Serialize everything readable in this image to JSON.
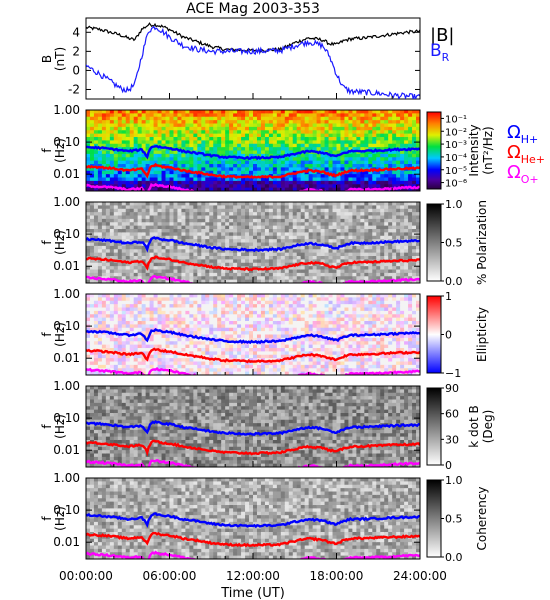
{
  "title": "ACE Mag 2003-353",
  "xlabel": "Time (UT)",
  "xticks": [
    "00:00:00",
    "06:00:00",
    "12:00:00",
    "18:00:00",
    "24:00:00"
  ],
  "colors": {
    "background": "#ffffff",
    "bmag": "#000000",
    "br": "#1a1aff",
    "h_gyro": "#0000ff",
    "he_gyro": "#ff0000",
    "o_gyro": "#ff00ff"
  },
  "legend": {
    "bmag": "|B|",
    "br_main": "B",
    "br_sub": "R",
    "omega": "Ω",
    "h_sub": "H+",
    "he_sub": "He+",
    "o_sub": "O+"
  },
  "chart_data": [
    {
      "type": "line",
      "panel": "field",
      "ylabel": "B",
      "yunit": "(nT)",
      "ylim": [
        -3,
        5.5
      ],
      "yticks": [
        "4",
        "2",
        "0",
        "-2"
      ],
      "x_hours": [
        0,
        1,
        2,
        2.5,
        3,
        3.5,
        4,
        4.5,
        5,
        5.5,
        6,
        7,
        8,
        9,
        10,
        12,
        14,
        15,
        16,
        17,
        17.5,
        18,
        18.5,
        19,
        20,
        21,
        22,
        23,
        24
      ],
      "series": [
        {
          "name": "|B|",
          "values": [
            4.5,
            4.3,
            3.9,
            3.7,
            3.4,
            3.2,
            4.3,
            4.8,
            4.8,
            4.6,
            4.3,
            3.5,
            3.0,
            2.5,
            2.2,
            2.1,
            2.2,
            2.9,
            3.4,
            3.2,
            2.8,
            2.7,
            3.1,
            3.3,
            3.4,
            3.6,
            3.8,
            4.0,
            4.1
          ]
        },
        {
          "name": "B_R",
          "values": [
            0.5,
            -0.4,
            -1.4,
            -1.9,
            -2.1,
            -1.5,
            1.5,
            4.2,
            4.6,
            4.1,
            3.5,
            2.6,
            2.2,
            2.0,
            2.0,
            2.0,
            2.1,
            2.6,
            3.0,
            2.6,
            1.5,
            -0.4,
            -1.8,
            -2.2,
            -2.3,
            -2.4,
            -2.6,
            -2.7,
            -2.8
          ]
        }
      ]
    },
    {
      "type": "heatmap",
      "panel": "intensity",
      "ylabel": "f",
      "yunit": "(Hz)",
      "yscale": "log",
      "ylim": [
        0.003,
        1.0
      ],
      "yticks": [
        "1.00",
        "0.10",
        "0.01"
      ],
      "colorbar_label": "Intensity",
      "colorbar_unit": "(nT²/Hz)",
      "colorbar_ticks": [
        "10⁻¹",
        "10⁻²",
        "10⁻³",
        "10⁻⁴",
        "10⁻⁵",
        "10⁻⁶"
      ],
      "colormap": "rainbow"
    },
    {
      "type": "heatmap",
      "panel": "polarization",
      "ylabel": "f",
      "yunit": "(Hz)",
      "yscale": "log",
      "ylim": [
        0.003,
        1.0
      ],
      "yticks": [
        "1.00",
        "0.10",
        "0.01"
      ],
      "colorbar_label": "% Polarization",
      "colorbar_ticks": [
        "1.0",
        "0.5",
        "0.0"
      ],
      "colormap": "gray"
    },
    {
      "type": "heatmap",
      "panel": "ellipticity",
      "ylabel": "f",
      "yunit": "(Hz)",
      "yscale": "log",
      "ylim": [
        0.003,
        1.0
      ],
      "yticks": [
        "1.00",
        "0.10",
        "0.01"
      ],
      "colorbar_label": "Ellipticity",
      "colorbar_ticks": [
        "1",
        "0",
        "−1"
      ],
      "colormap": "blue-white-red"
    },
    {
      "type": "heatmap",
      "panel": "kdotb",
      "ylabel": "f",
      "yunit": "(Hz)",
      "yscale": "log",
      "ylim": [
        0.003,
        1.0
      ],
      "yticks": [
        "1.00",
        "0.10",
        "0.01"
      ],
      "colorbar_label": "k dot B",
      "colorbar_unit": "(Deg)",
      "colorbar_ticks": [
        "90",
        "60",
        "30",
        "0"
      ],
      "colormap": "gray"
    },
    {
      "type": "heatmap",
      "panel": "coherency",
      "ylabel": "f",
      "yunit": "(Hz)",
      "yscale": "log",
      "ylim": [
        0.003,
        1.0
      ],
      "yticks": [
        "1.00",
        "0.10",
        "0.01"
      ],
      "colorbar_label": "Coherency",
      "colorbar_ticks": [
        "1.0",
        "0.5",
        "0.0"
      ],
      "colormap": "gray"
    },
    {
      "type": "line",
      "panel": "gyrofrequency overlays (all spectrogram panels)",
      "yscale": "log",
      "x_hours": [
        0,
        1,
        2,
        3,
        4,
        4.4,
        4.7,
        5,
        5.5,
        6,
        7,
        8,
        9,
        10,
        12,
        14,
        15,
        16,
        17,
        17.5,
        18,
        18.5,
        19,
        20,
        21,
        22,
        23,
        24
      ],
      "series": [
        {
          "name": "H+",
          "values": [
            0.07,
            0.066,
            0.06,
            0.052,
            0.058,
            0.035,
            0.072,
            0.075,
            0.068,
            0.065,
            0.052,
            0.045,
            0.038,
            0.034,
            0.032,
            0.034,
            0.043,
            0.052,
            0.047,
            0.04,
            0.036,
            0.045,
            0.052,
            0.053,
            0.055,
            0.058,
            0.06,
            0.062
          ]
        },
        {
          "name": "He+",
          "values": [
            0.0175,
            0.0165,
            0.015,
            0.013,
            0.0145,
            0.0088,
            0.018,
            0.019,
            0.017,
            0.0163,
            0.013,
            0.0113,
            0.0095,
            0.0085,
            0.008,
            0.0085,
            0.0108,
            0.013,
            0.0118,
            0.01,
            0.009,
            0.0113,
            0.013,
            0.0133,
            0.0138,
            0.0145,
            0.015,
            0.0155
          ]
        },
        {
          "name": "O+",
          "values": [
            0.0044,
            0.0041,
            0.0038,
            0.0033,
            0.0036,
            0.0022,
            0.0045,
            0.0047,
            0.0043,
            0.0041,
            0.0033,
            0.0028,
            0.0024,
            0.0021,
            0.002,
            0.0021,
            0.0027,
            0.0033,
            0.003,
            0.0025,
            0.0023,
            0.0028,
            0.0033,
            0.0033,
            0.0034,
            0.0036,
            0.0038,
            0.0039
          ]
        }
      ]
    }
  ]
}
